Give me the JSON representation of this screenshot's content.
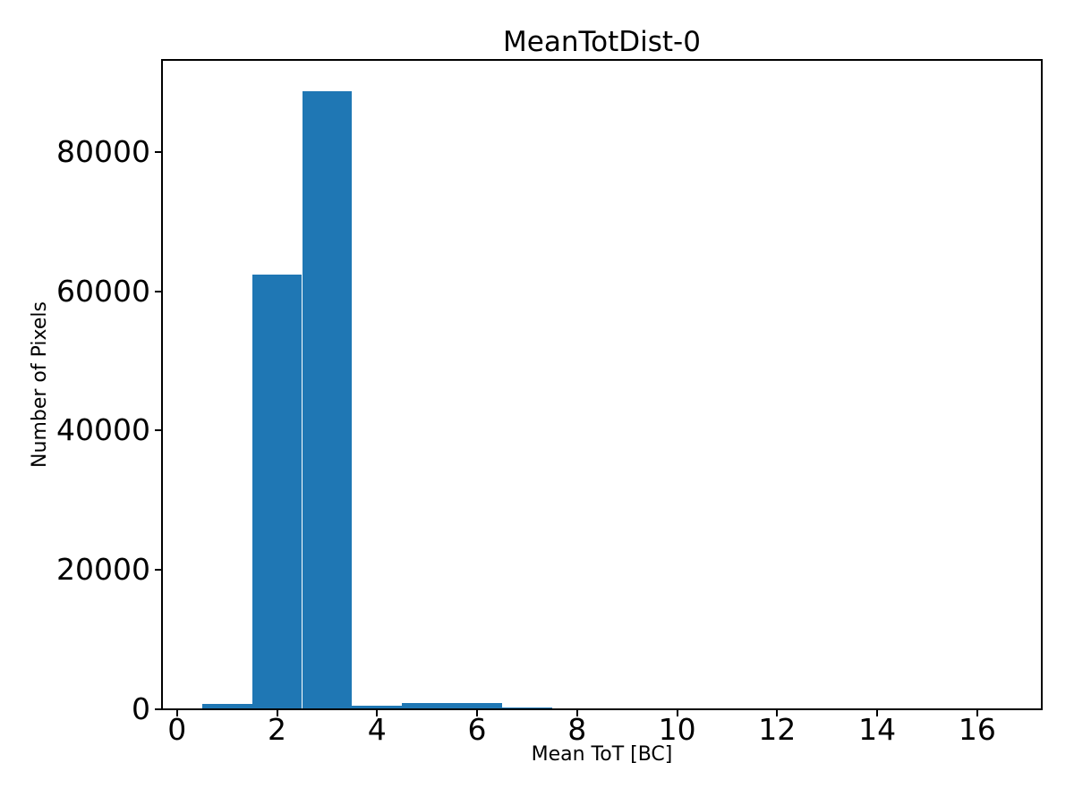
{
  "chart_data": {
    "type": "bar",
    "subtype": "histogram",
    "title": "MeanTotDist-0",
    "xlabel": "Mean ToT [BC]",
    "ylabel": "Number of Pixels",
    "bar_color": "#1f77b4",
    "text_color": "#000000",
    "background_color": "#ffffff",
    "grid": false,
    "legend": null,
    "xlim": [
      -0.3,
      17.3
    ],
    "ylim": [
      0,
      93240
    ],
    "xtick_values": [
      0,
      2,
      4,
      6,
      8,
      10,
      12,
      14,
      16
    ],
    "xtick_labels": [
      "0",
      "2",
      "4",
      "6",
      "8",
      "10",
      "12",
      "14",
      "16"
    ],
    "ytick_values": [
      0,
      20000,
      40000,
      60000,
      80000
    ],
    "ytick_labels": [
      "0",
      "20000",
      "40000",
      "60000",
      "80000"
    ],
    "bin_edges": [
      0.5,
      1.5,
      2.5,
      3.5,
      4.5,
      5.5,
      6.5,
      7.5,
      8.5,
      9.5,
      10.5,
      11.5,
      12.5,
      13.5,
      14.5,
      15.5,
      16.5
    ],
    "counts": [
      650,
      62400,
      88800,
      450,
      830,
      830,
      200,
      0,
      0,
      0,
      0,
      0,
      0,
      0,
      0,
      0
    ]
  }
}
